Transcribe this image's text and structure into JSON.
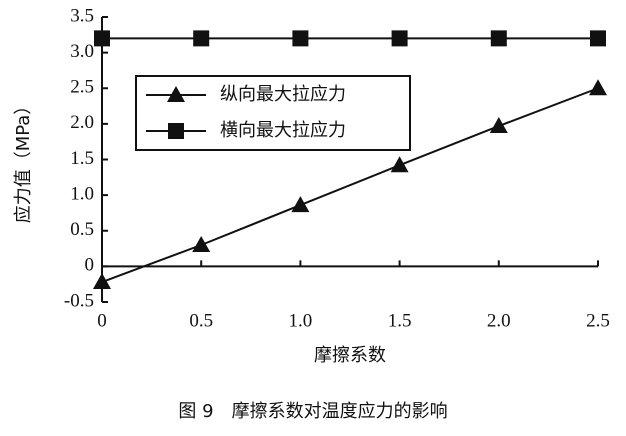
{
  "chart_data": {
    "type": "line",
    "title": "图 9　摩擦系数对温度应力的影响",
    "x_label": "摩擦系数",
    "y_label": "应力值（MPa）",
    "x": [
      0,
      0.5,
      1.0,
      1.5,
      2.0,
      2.5
    ],
    "series": [
      {
        "name": "纵向最大拉应力",
        "color": "#111111",
        "marker": "triangle",
        "values": [
          -0.22,
          0.3,
          0.86,
          1.42,
          1.97,
          2.5
        ]
      },
      {
        "name": "横向最大拉应力",
        "color": "#111111",
        "marker": "square",
        "values": [
          3.2,
          3.2,
          3.2,
          3.2,
          3.2,
          3.2
        ]
      }
    ],
    "xlim": [
      0,
      2.5
    ],
    "xticks": [
      0,
      0.5,
      {
        "value": 1,
        "label": "1.0"
      },
      1.5,
      {
        "value": 2,
        "label": "2.0"
      },
      2.5
    ],
    "ylim": [
      -0.5,
      3.5
    ],
    "yticks": [
      -0.5,
      0,
      0.5,
      {
        "value": 1,
        "label": "1.0"
      },
      1.5,
      {
        "value": 2,
        "label": "2.0"
      },
      2.5,
      {
        "value": 3,
        "label": "3.0"
      },
      3.5
    ],
    "grid": false,
    "legend": "upper-left"
  }
}
